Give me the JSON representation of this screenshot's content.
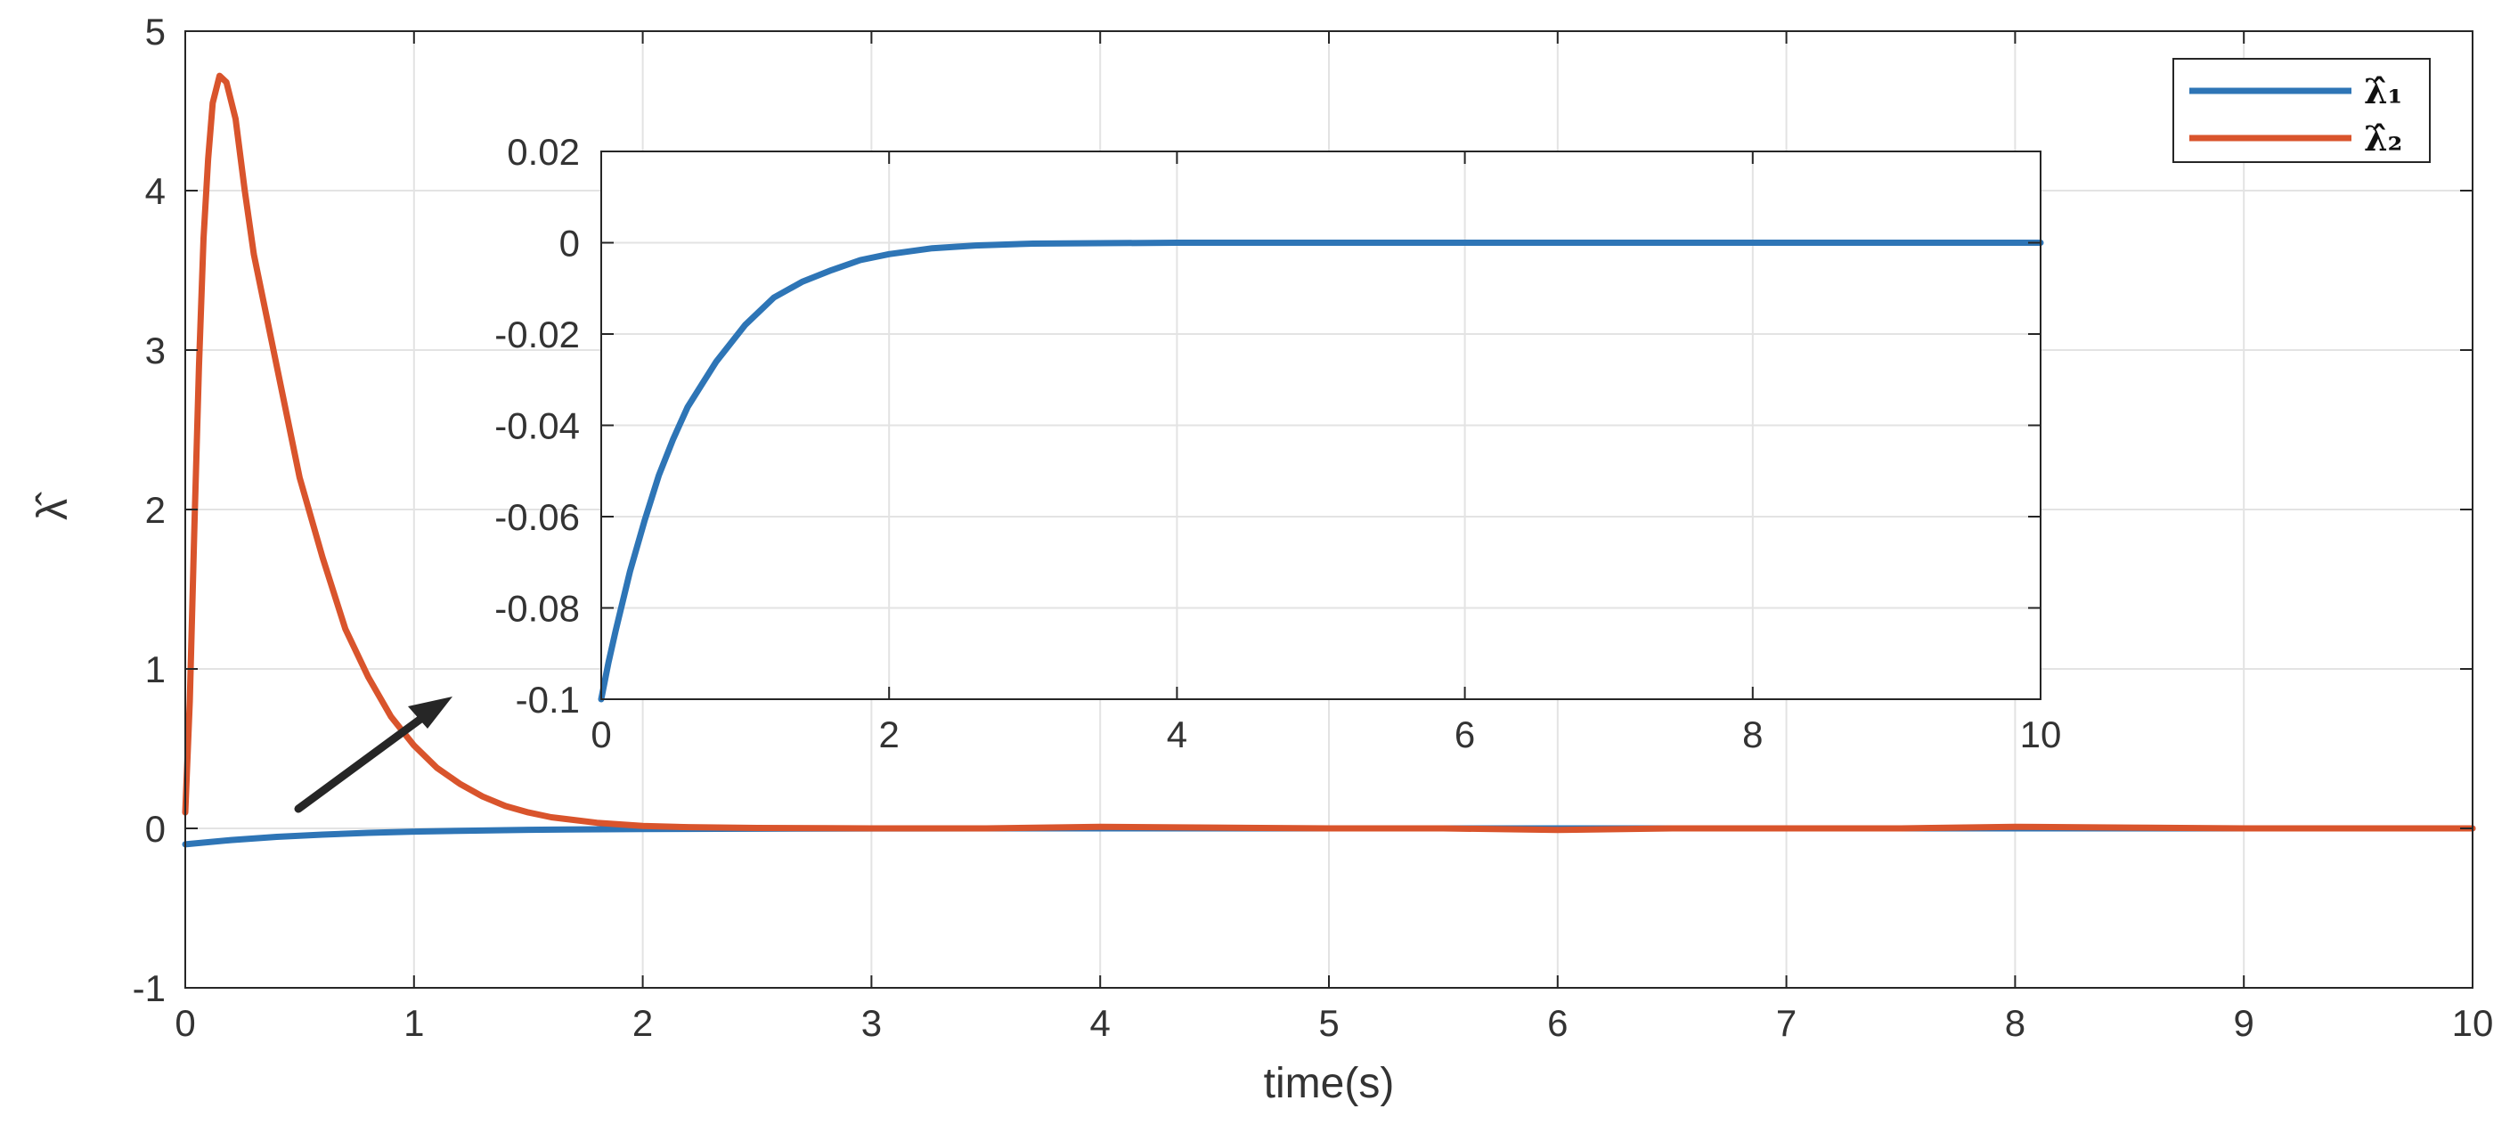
{
  "chart_data": [
    {
      "type": "line",
      "xlabel": "time(s)",
      "ylabel": "λ̂",
      "xlim": [
        0,
        10
      ],
      "ylim": [
        -1,
        5
      ],
      "xticks": [
        0,
        1,
        2,
        3,
        4,
        5,
        6,
        7,
        8,
        9,
        10
      ],
      "yticks": [
        -1,
        0,
        1,
        2,
        3,
        4,
        5
      ],
      "xtick_labels": [
        "0",
        "1",
        "2",
        "3",
        "4",
        "5",
        "6",
        "7",
        "8",
        "9",
        "10"
      ],
      "ytick_labels": [
        "-1",
        "0",
        "1",
        "2",
        "3",
        "4",
        "5"
      ],
      "grid": true,
      "legend_position": "top-right",
      "series": [
        {
          "name": "λ̂₁",
          "color": "#2E75B6",
          "x": [
            0,
            0.2,
            0.4,
            0.6,
            0.8,
            1.0,
            1.2,
            1.5,
            2.0,
            2.5,
            3.0,
            4.0,
            5.0,
            6.0,
            7.0,
            8.0,
            9.0,
            10.0
          ],
          "y": [
            -0.1,
            -0.073,
            -0.053,
            -0.039,
            -0.028,
            -0.02,
            -0.015,
            -0.009,
            -0.004,
            -0.002,
            -0.0005,
            0,
            0,
            0,
            0,
            0,
            0,
            0
          ]
        },
        {
          "name": "λ̂₂",
          "color": "#D9542C",
          "x": [
            0,
            0.02,
            0.04,
            0.06,
            0.08,
            0.1,
            0.12,
            0.15,
            0.18,
            0.22,
            0.26,
            0.3,
            0.4,
            0.5,
            0.6,
            0.7,
            0.8,
            0.9,
            1.0,
            1.1,
            1.2,
            1.3,
            1.4,
            1.5,
            1.6,
            1.8,
            2.0,
            2.2,
            2.5,
            2.8,
            3.0,
            3.5,
            4.0,
            4.5,
            5.0,
            5.5,
            6.0,
            6.5,
            7.0,
            7.5,
            8.0,
            8.5,
            9.0,
            9.5,
            10.0
          ],
          "y": [
            0.1,
            0.8,
            1.9,
            2.9,
            3.7,
            4.2,
            4.55,
            4.72,
            4.68,
            4.45,
            4.0,
            3.6,
            2.9,
            2.2,
            1.7,
            1.25,
            0.95,
            0.7,
            0.52,
            0.38,
            0.28,
            0.2,
            0.14,
            0.1,
            0.07,
            0.035,
            0.015,
            0.008,
            0.003,
            0.001,
            0,
            0,
            0.01,
            0.005,
            0,
            0,
            -0.01,
            0,
            0,
            0,
            0.01,
            0.005,
            0,
            0,
            0
          ]
        }
      ]
    },
    {
      "type": "line",
      "xlabel": "",
      "ylabel": "",
      "xlim": [
        0,
        10
      ],
      "ylim": [
        -0.1,
        0.02
      ],
      "xticks": [
        0,
        2,
        4,
        6,
        8,
        10
      ],
      "yticks": [
        -0.1,
        -0.08,
        -0.06,
        -0.04,
        -0.02,
        0,
        0.02
      ],
      "xtick_labels": [
        "0",
        "2",
        "4",
        "6",
        "8",
        "10"
      ],
      "ytick_labels": [
        "-0.1",
        "-0.08",
        "-0.06",
        "-0.04",
        "-0.02",
        "0",
        "0.02"
      ],
      "grid": true,
      "series": [
        {
          "color": "#2E75B6",
          "x": [
            0,
            0.05,
            0.1,
            0.2,
            0.3,
            0.4,
            0.5,
            0.6,
            0.7,
            0.8,
            1.0,
            1.2,
            1.4,
            1.6,
            1.8,
            2.0,
            2.3,
            2.6,
            3.0,
            4.0,
            5.0,
            6.0,
            7.0,
            8.0,
            9.0,
            10.0
          ],
          "y": [
            -0.1,
            -0.092,
            -0.085,
            -0.072,
            -0.061,
            -0.051,
            -0.043,
            -0.036,
            -0.031,
            -0.026,
            -0.018,
            -0.012,
            -0.0085,
            -0.006,
            -0.0038,
            -0.0025,
            -0.0012,
            -0.0006,
            -0.0002,
            0,
            0,
            0,
            0,
            0,
            0,
            0
          ]
        }
      ]
    }
  ]
}
